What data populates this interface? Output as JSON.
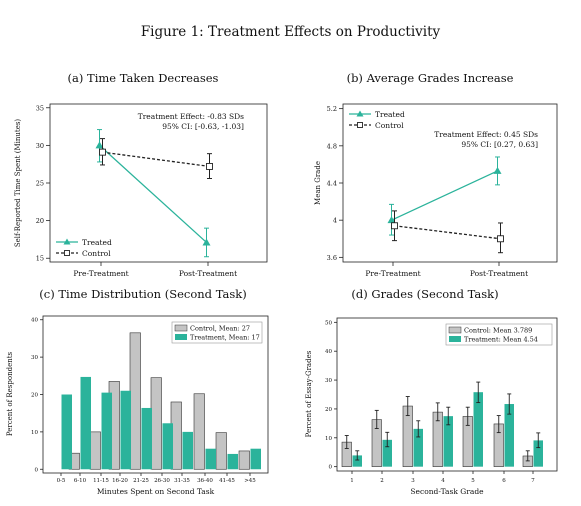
{
  "figure_title": "Figure 1: Treatment Effects on Productivity",
  "colors": {
    "treated": "#2bb39b",
    "control_line": "#222222",
    "control_bar": "#c4c4c4"
  },
  "chart_data": [
    {
      "type": "line",
      "title": "(a) Time Taken Decreases",
      "xlabel": "",
      "ylabel": "Self-Reported Time Spent (Minutes)",
      "categories": [
        "Pre-Treatment",
        "Post-Treatment"
      ],
      "ylim": [
        14.5,
        35.5
      ],
      "yticks": [
        15,
        20,
        25,
        30,
        35
      ],
      "legend_position": "bottom-left",
      "annotation": [
        "Treatment Effect:   -0.83 SDs",
        "95% CI: [-0.63, -1.03]"
      ],
      "series": [
        {
          "name": "Treated",
          "values": [
            30.0,
            17.1
          ],
          "ci": [
            [
              27.8,
              32.1
            ],
            [
              15.2,
              19.0
            ]
          ]
        },
        {
          "name": "Control",
          "values": [
            29.1,
            27.2
          ],
          "ci": [
            [
              27.4,
              30.9
            ],
            [
              25.6,
              28.9
            ]
          ]
        }
      ]
    },
    {
      "type": "line",
      "title": "(b) Average Grades Increase",
      "xlabel": "",
      "ylabel": "Mean Grade",
      "categories": [
        "Pre-Treatment",
        "Post-Treatment"
      ],
      "ylim": [
        3.55,
        5.25
      ],
      "yticks": [
        "3.6",
        "4",
        "4.4",
        "4.8",
        "5.2"
      ],
      "legend_position": "top-left",
      "annotation": [
        "Treatment Effect:   0.45 SDs",
        "95% CI: [0.27, 0.63]"
      ],
      "series": [
        {
          "name": "Treated",
          "values": [
            4.0,
            4.53
          ],
          "ci": [
            [
              3.84,
              4.17
            ],
            [
              4.38,
              4.68
            ]
          ]
        },
        {
          "name": "Control",
          "values": [
            3.94,
            3.8
          ],
          "ci": [
            [
              3.78,
              4.1
            ],
            [
              3.65,
              3.97
            ]
          ]
        }
      ]
    },
    {
      "type": "bar",
      "title": "(c) Time Distribution (Second Task)",
      "xlabel": "Minutes Spent on Second Task",
      "ylabel": "Percent of Respondents",
      "categories": [
        "0-5",
        "6-10",
        "11-15",
        "16-20",
        "21-25",
        "26-30",
        "31-35",
        "36-40",
        "41-45",
        ">45"
      ],
      "ylim": [
        -1,
        41
      ],
      "yticks": [
        0,
        10,
        20,
        30,
        40
      ],
      "legend_position": "top-right",
      "series": [
        {
          "name": "Control, Mean: 27",
          "values": [
            0,
            4.3,
            10,
            23.5,
            36.5,
            24.5,
            18,
            20.2,
            9.8,
            4.9
          ]
        },
        {
          "name": "Treatment, Mean: 17",
          "values": [
            20,
            24.7,
            20.5,
            21,
            16.4,
            12.3,
            10,
            5.5,
            4.1,
            5.5
          ]
        }
      ]
    },
    {
      "type": "bar",
      "title": "(d) Grades (Second Task)",
      "xlabel": "Second-Task Grade",
      "ylabel": "Percent of Essay-Grades",
      "categories": [
        "1",
        "2",
        "3",
        "4",
        "5",
        "6",
        "7"
      ],
      "ylim": [
        -1.5,
        51.5
      ],
      "yticks": [
        0,
        10,
        20,
        30,
        40,
        50
      ],
      "legend_position": "top-right",
      "series": [
        {
          "name": "Control: Mean 3.789",
          "values": [
            8.5,
            16.3,
            21,
            18.9,
            17.4,
            14.8,
            3.7
          ],
          "ci": [
            [
              6.3,
              10.8
            ],
            [
              13.2,
              19.5
            ],
            [
              17.7,
              24.3
            ],
            [
              15.9,
              22.1
            ],
            [
              14.3,
              20.6
            ],
            [
              11.8,
              17.7
            ],
            [
              2.0,
              5.5
            ]
          ]
        },
        {
          "name": "Treatment: Mean 4.54",
          "values": [
            3.9,
            9.3,
            13.1,
            17.5,
            25.8,
            21.7,
            9.1
          ],
          "ci": [
            [
              2.3,
              5.5
            ],
            [
              6.9,
              11.9
            ],
            [
              10.3,
              15.9
            ],
            [
              14.5,
              20.6
            ],
            [
              22.2,
              29.3
            ],
            [
              18.2,
              25.2
            ],
            [
              6.6,
              11.7
            ]
          ]
        }
      ]
    }
  ]
}
